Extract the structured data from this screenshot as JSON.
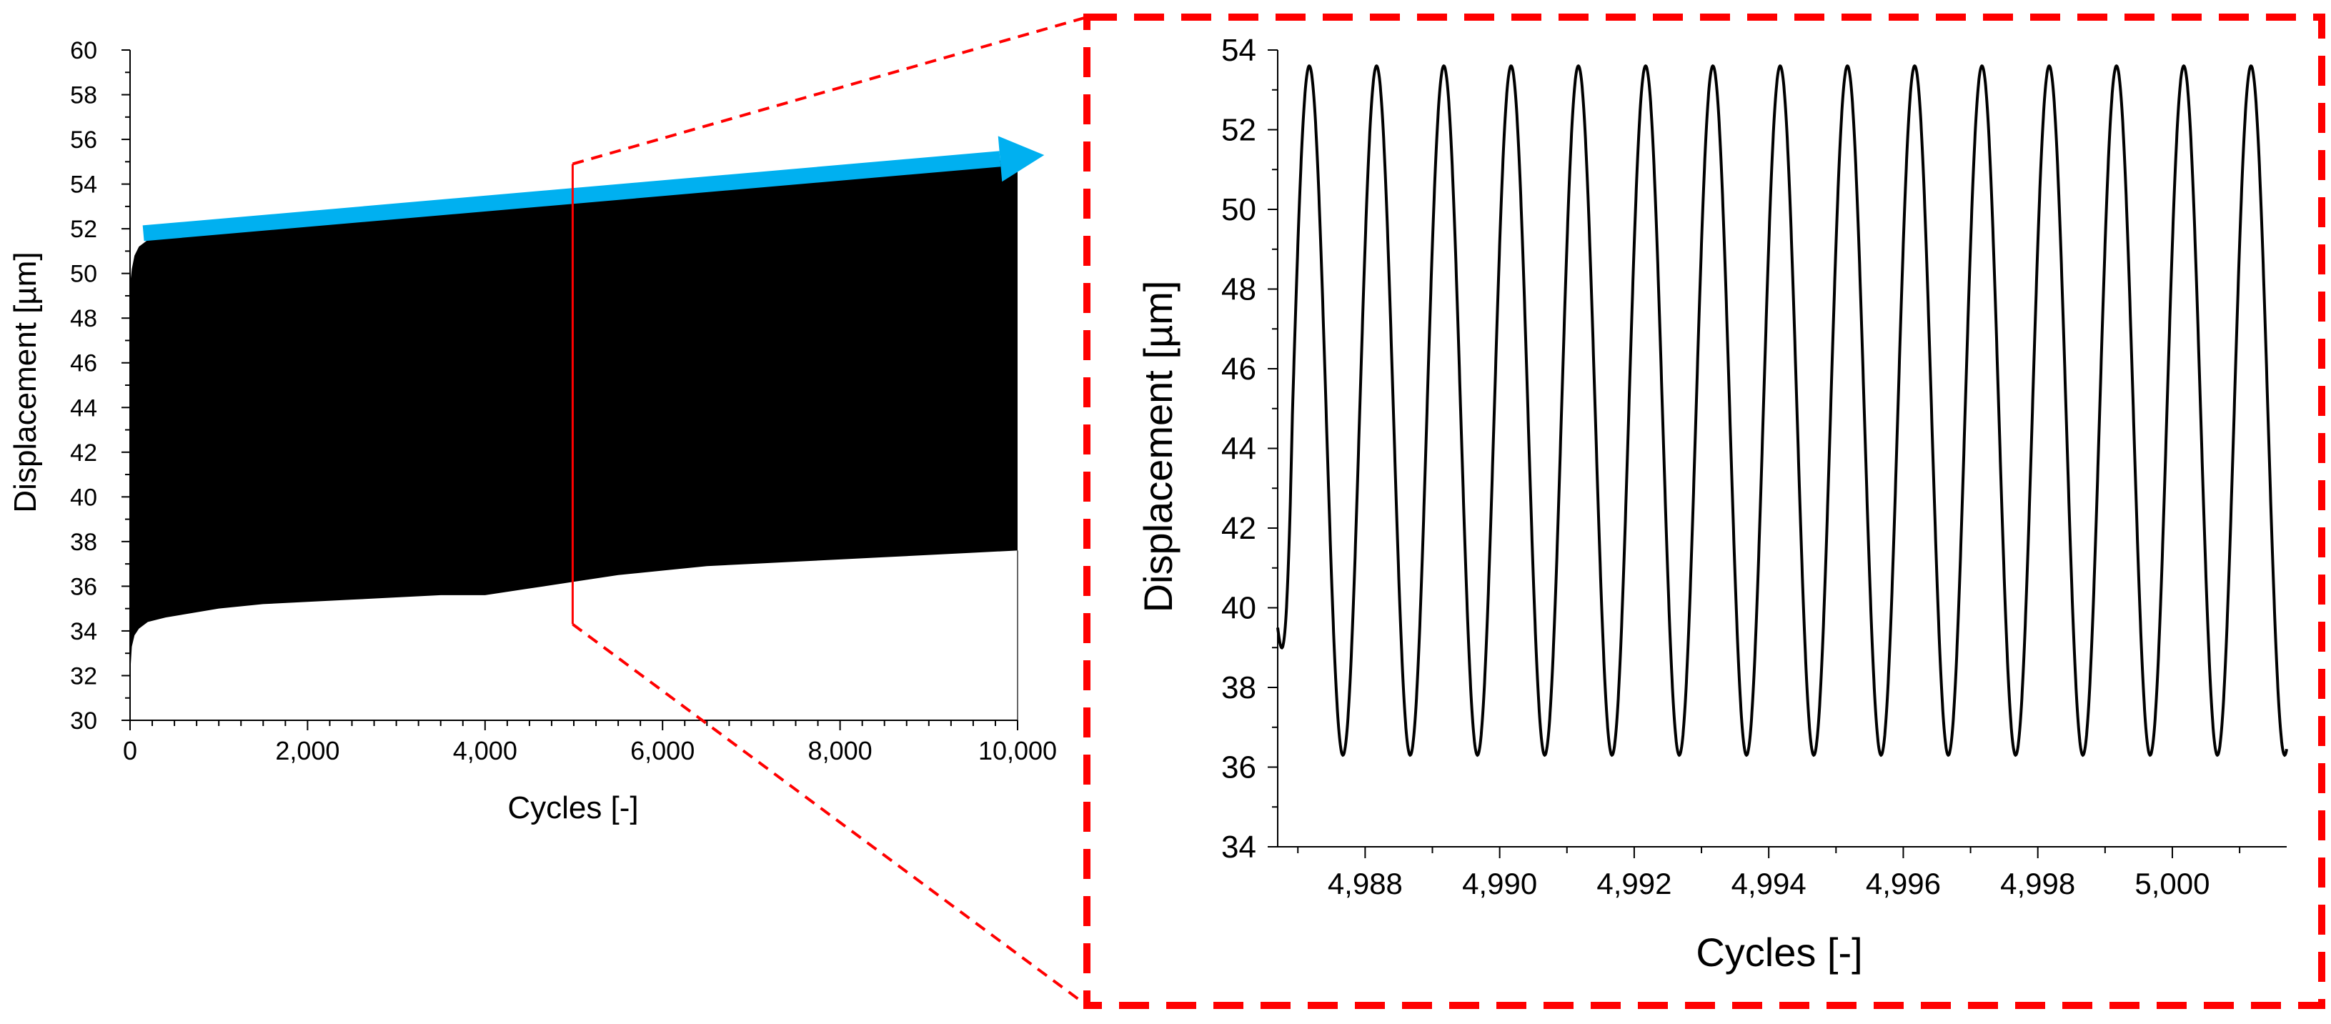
{
  "colors": {
    "envelope_fill": "#000000",
    "trend_arrow": "#00B0F0",
    "zoom_marker": "#FF0000",
    "wave_line": "#000000"
  },
  "chart_data": [
    {
      "type": "area",
      "xlabel": "Cycles [-]",
      "ylabel": "Displacement [µm]",
      "xlim": [
        0,
        10000
      ],
      "ylim": [
        30,
        60
      ],
      "xticks": [
        0,
        2000,
        4000,
        6000,
        8000,
        10000
      ],
      "xtick_labels": [
        "0",
        "2,000",
        "4,000",
        "6,000",
        "8,000",
        "10,000"
      ],
      "yticks": [
        30,
        32,
        34,
        36,
        38,
        40,
        42,
        44,
        46,
        48,
        50,
        52,
        54,
        56,
        58,
        60
      ],
      "ytick_labels": [
        "30",
        "32",
        "34",
        "36",
        "38",
        "40",
        "42",
        "44",
        "46",
        "48",
        "50",
        "52",
        "54",
        "56",
        "58",
        "60"
      ],
      "grid": false,
      "series": [
        {
          "x": [
            0,
            20,
            50,
            100,
            200,
            400,
            700,
            1000,
            1500,
            2000,
            2500,
            3000,
            3500,
            4000,
            4500,
            5000,
            5500,
            6000,
            6500,
            7000,
            7500,
            8000,
            8500,
            9000,
            9500,
            10000
          ],
          "upper": [
            49.5,
            50.2,
            50.8,
            51.2,
            51.5,
            51.7,
            51.9,
            52.1,
            52.3,
            52.5,
            52.7,
            52.9,
            53.1,
            53.3,
            53.5,
            53.6,
            53.8,
            54.0,
            54.1,
            54.3,
            54.4,
            54.6,
            54.7,
            54.9,
            55.0,
            55.1
          ],
          "lower": [
            32.0,
            33.3,
            33.8,
            34.1,
            34.4,
            34.6,
            34.8,
            35.0,
            35.2,
            35.3,
            35.4,
            35.5,
            35.6,
            35.6,
            35.9,
            36.2,
            36.5,
            36.7,
            36.9,
            37.0,
            37.1,
            37.2,
            37.3,
            37.4,
            37.5,
            37.6
          ]
        }
      ],
      "annotations": [
        {
          "type": "trend-arrow",
          "from": [
            150,
            51.8
          ],
          "to": [
            10300,
            55.3
          ]
        },
        {
          "type": "zoom-window",
          "x": 4987,
          "y_range": [
            34.3,
            54.9
          ]
        }
      ]
    },
    {
      "type": "line",
      "xlabel": "Cycles [-]",
      "ylabel": "Displacement [µm]",
      "xlim": [
        4986.7,
        5001.7
      ],
      "ylim": [
        34,
        54
      ],
      "xticks": [
        4988,
        4990,
        4992,
        4994,
        4996,
        4998,
        5000
      ],
      "xtick_labels": [
        "4,988",
        "4,990",
        "4,992",
        "4,994",
        "4,996",
        "4,998",
        "5,000"
      ],
      "yticks": [
        34,
        36,
        38,
        40,
        42,
        44,
        46,
        48,
        50,
        52,
        54
      ],
      "ytick_labels": [
        "34",
        "36",
        "38",
        "40",
        "42",
        "44",
        "46",
        "48",
        "50",
        "52",
        "54"
      ],
      "grid": false,
      "series": [
        {
          "waveform": "sine",
          "x_start": 4986.7,
          "x_end": 5001.7,
          "y_start": 39.5,
          "period": 1,
          "peak_x": [
            4987.17,
            4988.17,
            4989.17,
            4990.17,
            4991.17,
            4992.17,
            4993.17,
            4994.17,
            4995.17,
            4996.17,
            4997.17,
            4998.17,
            4999.17,
            5000.17,
            5001.17
          ],
          "max": 53.6,
          "min": 36.3
        }
      ]
    }
  ]
}
